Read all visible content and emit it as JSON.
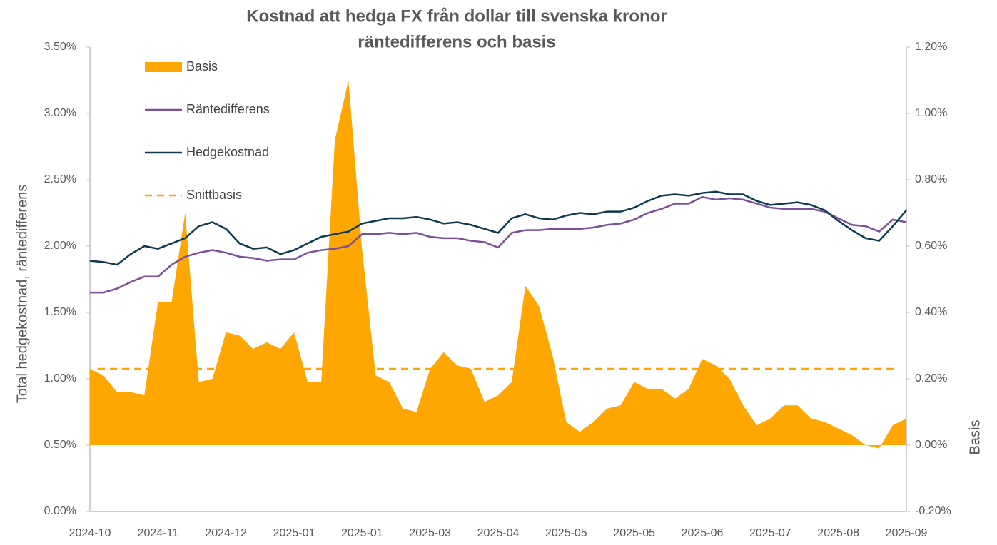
{
  "chart_data": {
    "type": "combo",
    "title": [
      "Kostnad att hedga FX från dollar till svenska kronor",
      "räntedifferens och basis"
    ],
    "y_label": "Total hedgekostnad, räntedifferens",
    "y2_label": "Basis",
    "categories": [
      "2024-10",
      null,
      null,
      null,
      null,
      "2024-11",
      null,
      null,
      null,
      null,
      "2024-12",
      null,
      null,
      null,
      null,
      "2025-01",
      null,
      null,
      null,
      null,
      "2025-01",
      null,
      null,
      null,
      null,
      "2025-03",
      null,
      null,
      null,
      null,
      "2025-04",
      null,
      null,
      null,
      null,
      "2025-05",
      null,
      null,
      null,
      null,
      "2025-05",
      null,
      null,
      null,
      null,
      "2025-06",
      null,
      null,
      null,
      null,
      "2025-07",
      null,
      null,
      null,
      null,
      "2025-08",
      null,
      null,
      null,
      null,
      "2025-09"
    ],
    "ylim": [
      0,
      3.5
    ],
    "yticks": [
      {
        "value": 0,
        "label": "0.00%"
      },
      {
        "value": 0.5,
        "label": "0.50%"
      },
      {
        "value": 1,
        "label": "1.00%"
      },
      {
        "value": 1.5,
        "label": "1.50%"
      },
      {
        "value": 2,
        "label": "2.00%"
      },
      {
        "value": 2.5,
        "label": "2.50%"
      },
      {
        "value": 3,
        "label": "3.00%"
      },
      {
        "value": 3.5,
        "label": "3.50%"
      }
    ],
    "y2lim": [
      -0.2,
      1.2
    ],
    "y2ticks": [
      {
        "value": -0.2,
        "label": "-0.20%"
      },
      {
        "value": 0,
        "label": "0.00%"
      },
      {
        "value": 0.2,
        "label": "0.20%"
      },
      {
        "value": 0.4,
        "label": "0.40%"
      },
      {
        "value": 0.6,
        "label": "0.60%"
      },
      {
        "value": 0.8,
        "label": "0.80%"
      },
      {
        "value": 1,
        "label": "1.00%"
      },
      {
        "value": 1.2,
        "label": "1.20%"
      }
    ],
    "grid": false,
    "legend": "top-left",
    "series": [
      {
        "name": "Basis",
        "type": "area",
        "axis": "y2",
        "color": "#ffa600",
        "values": [
          0.23,
          0.21,
          0.16,
          0.16,
          0.15,
          0.43,
          0.43,
          0.7,
          0.19,
          0.2,
          0.34,
          0.33,
          0.29,
          0.31,
          0.29,
          0.34,
          0.19,
          0.19,
          0.92,
          1.1,
          0.59,
          0.21,
          0.19,
          0.11,
          0.1,
          0.23,
          0.28,
          0.24,
          0.23,
          0.13,
          0.15,
          0.19,
          0.48,
          0.42,
          0.27,
          0.07,
          0.04,
          0.07,
          0.11,
          0.12,
          0.19,
          0.17,
          0.17,
          0.14,
          0.17,
          0.26,
          0.24,
          0.2,
          0.12,
          0.06,
          0.08,
          0.12,
          0.12,
          0.08,
          0.07,
          0.05,
          0.03,
          0,
          -0.01,
          0.06,
          0.08
        ]
      },
      {
        "name": "Räntedifferens",
        "type": "line",
        "color": "#7b4f9a",
        "values": [
          1.65,
          1.65,
          1.68,
          1.73,
          1.77,
          1.77,
          1.86,
          1.92,
          1.95,
          1.97,
          1.95,
          1.92,
          1.91,
          1.89,
          1.9,
          1.9,
          1.95,
          1.97,
          1.98,
          2,
          2.09,
          2.09,
          2.1,
          2.09,
          2.1,
          2.07,
          2.06,
          2.06,
          2.04,
          2.03,
          1.99,
          2.1,
          2.12,
          2.12,
          2.13,
          2.13,
          2.13,
          2.14,
          2.16,
          2.17,
          2.2,
          2.25,
          2.28,
          2.32,
          2.32,
          2.37,
          2.35,
          2.36,
          2.35,
          2.32,
          2.29,
          2.28,
          2.28,
          2.28,
          2.26,
          2.21,
          2.16,
          2.15,
          2.11,
          2.2,
          2.18
        ]
      },
      {
        "name": "Hedgekostnad",
        "type": "line",
        "color": "#0e3a4e",
        "values": [
          1.89,
          1.88,
          1.86,
          1.94,
          2,
          1.98,
          2.02,
          2.06,
          2.15,
          2.18,
          2.13,
          2.02,
          1.98,
          1.99,
          1.94,
          1.97,
          2.02,
          2.07,
          2.09,
          2.11,
          2.17,
          2.19,
          2.21,
          2.21,
          2.22,
          2.2,
          2.17,
          2.18,
          2.16,
          2.13,
          2.1,
          2.21,
          2.24,
          2.21,
          2.2,
          2.23,
          2.25,
          2.24,
          2.26,
          2.26,
          2.29,
          2.34,
          2.38,
          2.39,
          2.38,
          2.4,
          2.41,
          2.39,
          2.39,
          2.34,
          2.31,
          2.32,
          2.33,
          2.31,
          2.27,
          2.19,
          2.12,
          2.06,
          2.04,
          2.15,
          2.27
        ]
      },
      {
        "name": "Snittbasis",
        "type": "hline",
        "axis": "y2",
        "color": "#ffa600",
        "dashed": true,
        "value": 0.23
      }
    ]
  }
}
